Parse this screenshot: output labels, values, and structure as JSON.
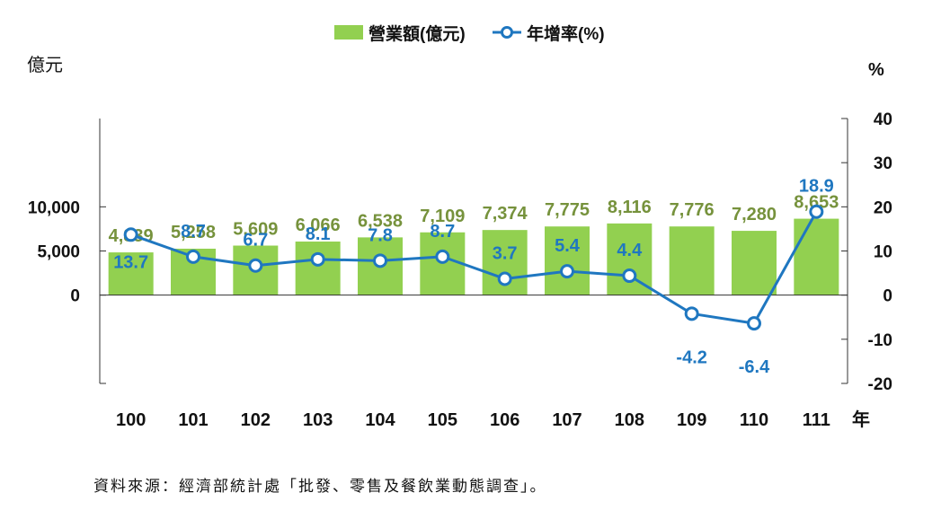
{
  "chart_data": {
    "type": "bar",
    "title": "",
    "categories": [
      "100",
      "101",
      "102",
      "103",
      "104",
      "105",
      "106",
      "107",
      "108",
      "109",
      "110",
      "111"
    ],
    "xlabel_suffix": "年",
    "series": [
      {
        "name": "營業額(億元)",
        "type": "bar",
        "axis": "left",
        "color": "#92d050",
        "label_color": "#76923c",
        "values": [
          4839,
          5258,
          5609,
          6066,
          6538,
          7109,
          7374,
          7775,
          8116,
          7776,
          7280,
          8653
        ],
        "labels": [
          "4,839",
          "5,258",
          "5,609",
          "6,066",
          "6,538",
          "7,109",
          "7,374",
          "7,775",
          "8,116",
          "7,776",
          "7,280",
          "8,653"
        ]
      },
      {
        "name": "年增率(%)",
        "type": "line",
        "axis": "right",
        "color": "#1f77c0",
        "label_color": "#1f77c0",
        "values": [
          13.7,
          8.7,
          6.7,
          8.1,
          7.8,
          8.7,
          3.7,
          5.4,
          4.4,
          -4.2,
          -6.4,
          18.9
        ],
        "labels": [
          "13.7",
          "8.7",
          "6.7",
          "8.1",
          "7.8",
          "8.7",
          "3.7",
          "5.4",
          "4.4",
          "-4.2",
          "-6.4",
          "18.9"
        ]
      }
    ],
    "y_left": {
      "label": "億元",
      "ylim": [
        -10000,
        20000
      ],
      "ticks": [
        0,
        5000,
        10000
      ],
      "tick_labels": [
        "0",
        "5,000",
        "10,000"
      ]
    },
    "y_right": {
      "label": "%",
      "ylim": [
        -20,
        40
      ],
      "ticks": [
        -20,
        -10,
        0,
        10,
        20,
        30,
        40
      ],
      "tick_labels": [
        "-20",
        "-10",
        "0",
        "10",
        "20",
        "30",
        "40"
      ]
    },
    "legend": "top-center",
    "grid": false
  },
  "source_note": "資料來源：經濟部統計處「批發、零售及餐飲業動態調查」。"
}
